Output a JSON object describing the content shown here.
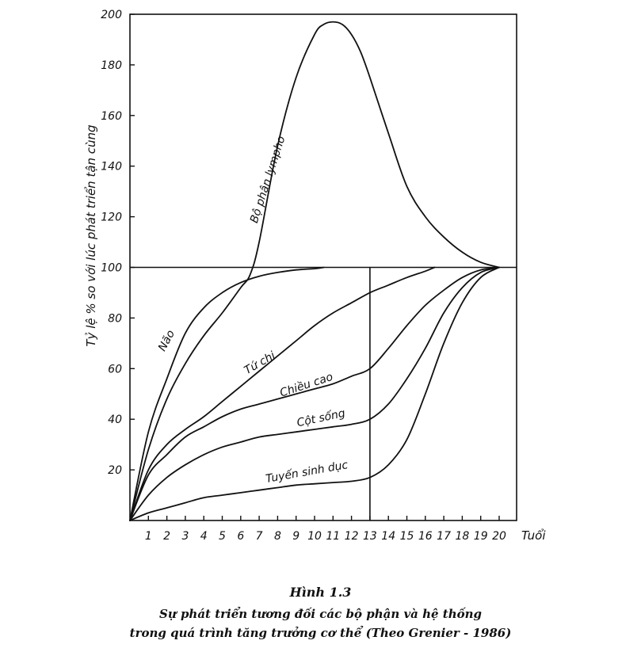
{
  "caption": {
    "figure_number": "Hình 1.3",
    "line1": "Sự phát triển tương đối các bộ phận và hệ thống",
    "line2": "trong quá trình tăng trưởng cơ thể  (Theo Grenier - 1986)"
  },
  "chart_data": {
    "type": "line",
    "title": "",
    "xlabel": "Tuổi",
    "ylabel": "Tỷ lệ % so với lúc phát triển tận cùng",
    "xlim": [
      0,
      21
    ],
    "ylim": [
      0,
      200
    ],
    "x_ticks": [
      1,
      2,
      3,
      4,
      5,
      6,
      7,
      8,
      9,
      10,
      11,
      12,
      13,
      14,
      15,
      16,
      17,
      18,
      19,
      20
    ],
    "y_ticks": [
      20,
      40,
      60,
      80,
      100,
      120,
      140,
      160,
      180,
      200
    ],
    "reference_lines": [
      {
        "axis": "y",
        "value": 100
      },
      {
        "axis": "x",
        "value": 13
      }
    ],
    "series": [
      {
        "name": "Bộ phận lympho",
        "x": [
          0,
          1,
          2,
          3,
          4,
          5,
          6,
          6.5,
          7,
          8,
          9,
          10,
          10.5,
          11,
          11.5,
          12,
          12.5,
          13,
          14,
          15,
          16,
          17,
          18,
          19,
          20
        ],
        "y": [
          0,
          28,
          48,
          62,
          73,
          82,
          92,
          97,
          110,
          148,
          175,
          192,
          196,
          197,
          196,
          192,
          185,
          175,
          153,
          132,
          120,
          112,
          106,
          102,
          100
        ]
      },
      {
        "name": "Não",
        "x": [
          0,
          1,
          2,
          3,
          4,
          5,
          6,
          7,
          8,
          9,
          10,
          10.5
        ],
        "y": [
          0,
          35,
          56,
          74,
          84,
          90,
          94,
          96.5,
          98,
          99,
          99.5,
          100
        ]
      },
      {
        "name": "Tứ chi",
        "x": [
          0,
          1,
          2,
          3,
          4,
          5,
          6,
          7,
          8,
          9,
          10,
          11,
          12,
          13,
          14,
          15,
          16,
          16.5
        ],
        "y": [
          0,
          20,
          30,
          36,
          41,
          47,
          53,
          59,
          65,
          71,
          77,
          82,
          86,
          90,
          93,
          96,
          98.5,
          100
        ]
      },
      {
        "name": "Chiều cao",
        "x": [
          0,
          1,
          2,
          3,
          4,
          5,
          6,
          7,
          8,
          9,
          10,
          11,
          12,
          13,
          14,
          15,
          16,
          17,
          18,
          19,
          20
        ],
        "y": [
          0,
          18,
          26,
          33,
          37,
          41,
          44,
          46,
          48,
          50,
          52,
          54,
          57,
          60,
          68,
          77,
          85,
          91,
          96,
          99,
          100
        ]
      },
      {
        "name": "Cột sống",
        "x": [
          0,
          1,
          2,
          3,
          4,
          5,
          6,
          7,
          8,
          9,
          10,
          11,
          12,
          13,
          14,
          15,
          16,
          17,
          18,
          19,
          20
        ],
        "y": [
          0,
          10,
          17,
          22,
          26,
          29,
          31,
          33,
          34,
          35,
          36,
          37,
          38,
          40,
          46,
          56,
          68,
          82,
          92,
          98,
          100
        ]
      },
      {
        "name": "Tuyến sinh dục",
        "x": [
          0,
          1,
          2,
          3,
          4,
          5,
          6,
          7,
          8,
          9,
          10,
          11,
          12,
          13,
          14,
          15,
          16,
          17,
          18,
          19,
          20
        ],
        "y": [
          0,
          3,
          5,
          7,
          9,
          10,
          11,
          12,
          13,
          14,
          14.5,
          15,
          15.5,
          17,
          22,
          32,
          50,
          70,
          86,
          96,
          100
        ]
      }
    ]
  }
}
